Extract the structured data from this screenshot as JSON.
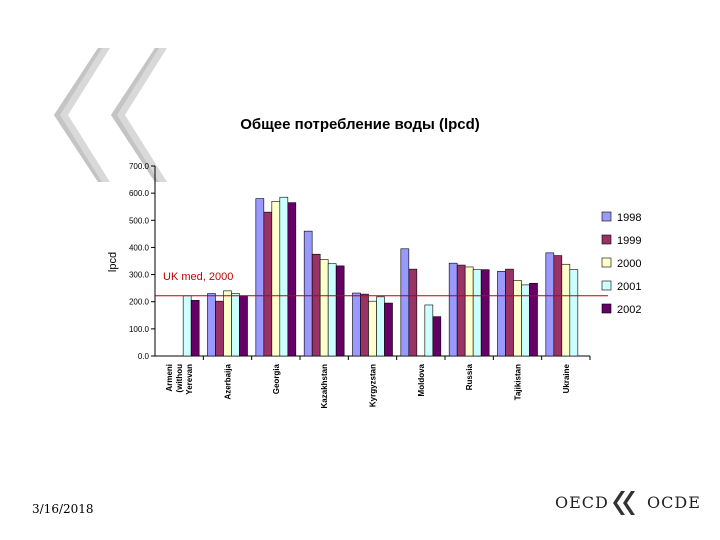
{
  "slide": {
    "date": "3/16/2018",
    "logo_left": "OECD",
    "logo_right": "OCDE"
  },
  "chart_data": {
    "type": "bar",
    "title": "Общее потребление воды (lpcd)",
    "ylabel": "lpcd",
    "xlabel": "",
    "ylim": [
      0,
      700
    ],
    "yticks": [
      "0.0",
      "100.0",
      "200.0",
      "300.0",
      "400.0",
      "500.0",
      "600.0",
      "700.0"
    ],
    "grid": false,
    "legend_position": "right",
    "categories": [
      "Armenia (without Yerevan)",
      "Azerbaijan",
      "Georgia",
      "Kazakhstan",
      "Kyrgyzstan",
      "Moldova",
      "Russia",
      "Tajikistan",
      "Ukraine"
    ],
    "category_labels": [
      [
        "Armeni",
        "(withou",
        "Yerevan"
      ],
      [
        "Azerbaija"
      ],
      [
        "Georgia"
      ],
      [
        "Kazakhstan"
      ],
      [
        "Kyrgyzstan"
      ],
      [
        "Moldova"
      ],
      [
        "Russia"
      ],
      [
        "Tajikistan"
      ],
      [
        "Ukraine"
      ]
    ],
    "series": [
      {
        "name": "1998",
        "color": "#9999ff",
        "values": [
          null,
          230,
          580,
          460,
          232,
          395,
          342,
          312,
          380
        ]
      },
      {
        "name": "1999",
        "color": "#993366",
        "values": [
          null,
          202,
          530,
          375,
          228,
          320,
          335,
          320,
          370
        ]
      },
      {
        "name": "2000",
        "color": "#ffffcc",
        "values": [
          null,
          240,
          570,
          355,
          202,
          null,
          328,
          278,
          338
        ]
      },
      {
        "name": "2001",
        "color": "#ccffff",
        "values": [
          222,
          230,
          585,
          340,
          218,
          188,
          318,
          262,
          318
        ]
      },
      {
        "name": "2002",
        "color": "#660066",
        "values": [
          205,
          222,
          565,
          332,
          195,
          145,
          318,
          268,
          null
        ]
      }
    ],
    "reference_line": {
      "label": "UK med, 2000",
      "value": 222,
      "color": "#c00000"
    }
  }
}
